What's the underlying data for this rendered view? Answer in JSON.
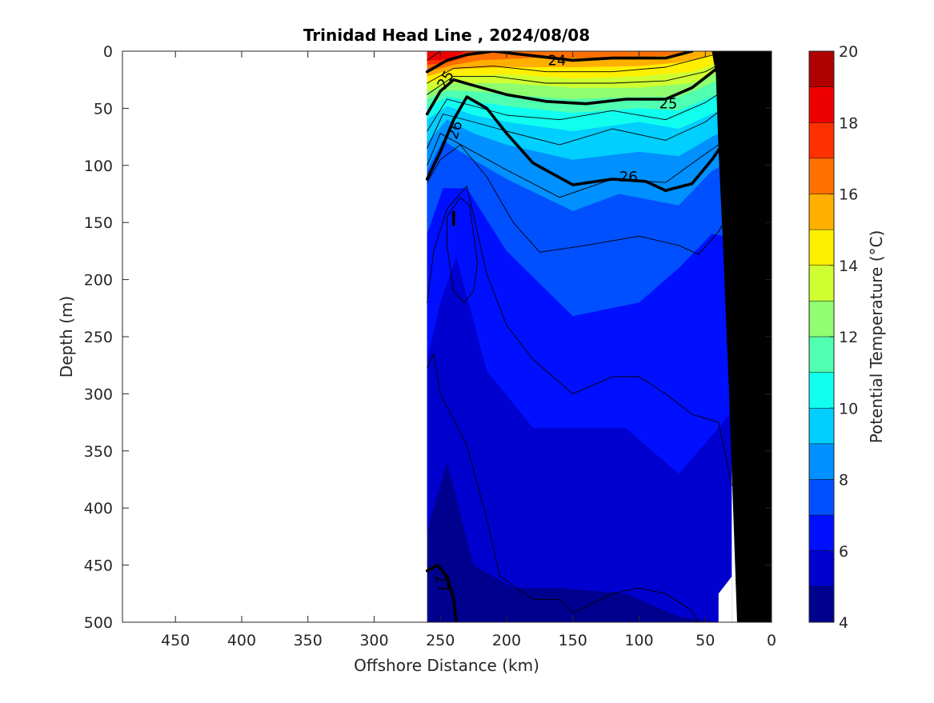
{
  "chart_data": {
    "type": "contour",
    "title": "Trinidad Head Line , 2024/08/08",
    "xlabel": "Offshore Distance (km)",
    "ylabel": "Depth (m)",
    "xlim": [
      490,
      0
    ],
    "ylim": [
      0,
      500
    ],
    "x_reversed": true,
    "y_reversed": true,
    "x_ticks": [
      450,
      400,
      350,
      300,
      250,
      200,
      150,
      100,
      50,
      0
    ],
    "y_ticks": [
      0,
      50,
      100,
      150,
      200,
      250,
      300,
      350,
      400,
      450,
      500
    ],
    "colorbar": {
      "label": "Potential Temperature (°C)",
      "range": [
        4,
        20
      ],
      "ticks": [
        4,
        6,
        8,
        10,
        12,
        14,
        16,
        18,
        20
      ],
      "levels": [
        4,
        5,
        6,
        7,
        8,
        9,
        10,
        11,
        12,
        13,
        14,
        15,
        16,
        17,
        18,
        19,
        20
      ],
      "colors": [
        "#00008f",
        "#0000cf",
        "#0010ff",
        "#0050ff",
        "#0090ff",
        "#00cfff",
        "#10ffef",
        "#50ffaf",
        "#90ff6f",
        "#cfff30",
        "#ffef00",
        "#ffaf00",
        "#ff7000",
        "#ff3000",
        "#ef0000",
        "#af0000"
      ]
    },
    "filled_layers": [
      {
        "level": 20,
        "color": "#ef0000",
        "profile": [
          [
            260,
            8
          ],
          [
            250,
            8
          ],
          [
            240,
            5
          ],
          [
            230,
            0
          ]
        ]
      },
      {
        "level": 19,
        "color": "#ff3000",
        "profile": [
          [
            260,
            12
          ],
          [
            245,
            10
          ],
          [
            230,
            5
          ],
          [
            220,
            0
          ]
        ]
      },
      {
        "level": 18,
        "color": "#ff7000",
        "profile": [
          [
            260,
            18
          ],
          [
            240,
            12
          ],
          [
            220,
            8
          ],
          [
            180,
            6
          ],
          [
            120,
            6
          ],
          [
            80,
            4
          ],
          [
            60,
            0
          ]
        ]
      },
      {
        "level": 17,
        "color": "#ffaf00",
        "profile": [
          [
            260,
            22
          ],
          [
            240,
            16
          ],
          [
            200,
            14
          ],
          [
            150,
            14
          ],
          [
            100,
            13
          ],
          [
            70,
            10
          ],
          [
            50,
            5
          ],
          [
            40,
            0
          ]
        ]
      },
      {
        "level": 16,
        "color": "#ffef00",
        "profile": [
          [
            260,
            28
          ],
          [
            240,
            22
          ],
          [
            200,
            20
          ],
          [
            150,
            24
          ],
          [
            100,
            22
          ],
          [
            60,
            18
          ],
          [
            35,
            8
          ],
          [
            20,
            0
          ]
        ]
      },
      {
        "level": 15,
        "color": "#cfff30",
        "profile": [
          [
            260,
            35
          ],
          [
            240,
            28
          ],
          [
            200,
            28
          ],
          [
            150,
            32
          ],
          [
            100,
            32
          ],
          [
            60,
            28
          ],
          [
            40,
            18
          ],
          [
            20,
            8
          ]
        ]
      },
      {
        "level": 14,
        "color": "#90ff6f",
        "profile": [
          [
            260,
            42
          ],
          [
            245,
            34
          ],
          [
            225,
            35
          ],
          [
            200,
            38
          ],
          [
            150,
            42
          ],
          [
            100,
            40
          ],
          [
            70,
            40
          ],
          [
            45,
            28
          ],
          [
            20,
            15
          ]
        ]
      },
      {
        "level": 13,
        "color": "#50ffaf",
        "profile": [
          [
            260,
            50
          ],
          [
            245,
            40
          ],
          [
            225,
            44
          ],
          [
            200,
            48
          ],
          [
            150,
            54
          ],
          [
            100,
            50
          ],
          [
            70,
            52
          ],
          [
            45,
            40
          ],
          [
            20,
            25
          ]
        ]
      },
      {
        "level": 12,
        "color": "#10ffef",
        "profile": [
          [
            260,
            60
          ],
          [
            245,
            48
          ],
          [
            225,
            56
          ],
          [
            200,
            62
          ],
          [
            150,
            70
          ],
          [
            100,
            62
          ],
          [
            70,
            68
          ],
          [
            45,
            55
          ],
          [
            20,
            40
          ]
        ]
      },
      {
        "level": 11,
        "color": "#00cfff",
        "profile": [
          [
            260,
            80
          ],
          [
            245,
            60
          ],
          [
            225,
            72
          ],
          [
            200,
            82
          ],
          [
            150,
            95
          ],
          [
            100,
            88
          ],
          [
            70,
            92
          ],
          [
            45,
            75
          ],
          [
            20,
            60
          ]
        ]
      },
      {
        "level": 10,
        "color": "#0090ff",
        "profile": [
          [
            260,
            105
          ],
          [
            248,
            78
          ],
          [
            225,
            95
          ],
          [
            200,
            112
          ],
          [
            150,
            140
          ],
          [
            115,
            125
          ],
          [
            70,
            135
          ],
          [
            45,
            105
          ],
          [
            20,
            90
          ]
        ]
      },
      {
        "level": 9,
        "color": "#0050ff",
        "profile": [
          [
            260,
            160
          ],
          [
            248,
            120
          ],
          [
            230,
            120
          ],
          [
            200,
            175
          ],
          [
            150,
            232
          ],
          [
            100,
            220
          ],
          [
            70,
            190
          ],
          [
            45,
            160
          ],
          [
            20,
            165
          ]
        ]
      },
      {
        "level": 8,
        "color": "#0010ff",
        "profile": [
          [
            260,
            270
          ],
          [
            250,
            220
          ],
          [
            238,
            180
          ],
          [
            215,
            280
          ],
          [
            180,
            330
          ],
          [
            150,
            330
          ],
          [
            110,
            330
          ],
          [
            70,
            370
          ],
          [
            40,
            330
          ],
          [
            20,
            300
          ]
        ]
      },
      {
        "level": 7,
        "color": "#0000cf",
        "profile": [
          [
            260,
            420
          ],
          [
            245,
            360
          ],
          [
            225,
            450
          ],
          [
            195,
            470
          ],
          [
            160,
            470
          ],
          [
            110,
            475
          ],
          [
            70,
            495
          ],
          [
            40,
            500
          ]
        ]
      }
    ],
    "contours": [
      {
        "label": "24",
        "bold": true,
        "points": [
          [
            260,
            18
          ],
          [
            245,
            8
          ],
          [
            230,
            3
          ],
          [
            210,
            0
          ],
          [
            180,
            4
          ],
          [
            150,
            8
          ],
          [
            120,
            6
          ],
          [
            80,
            6
          ],
          [
            60,
            0
          ]
        ]
      },
      {
        "label": "25",
        "bold": true,
        "points": [
          [
            260,
            55
          ],
          [
            250,
            35
          ],
          [
            240,
            25
          ],
          [
            225,
            30
          ],
          [
            200,
            38
          ],
          [
            170,
            44
          ],
          [
            140,
            46
          ],
          [
            110,
            42
          ],
          [
            80,
            42
          ],
          [
            60,
            32
          ],
          [
            40,
            14
          ],
          [
            20,
            0
          ]
        ]
      },
      {
        "label": "26",
        "bold": true,
        "points": [
          [
            260,
            112
          ],
          [
            250,
            88
          ],
          [
            240,
            60
          ],
          [
            230,
            40
          ],
          [
            215,
            50
          ],
          [
            200,
            72
          ],
          [
            180,
            98
          ],
          [
            150,
            117
          ],
          [
            120,
            112
          ],
          [
            95,
            114
          ],
          [
            80,
            122
          ],
          [
            60,
            116
          ],
          [
            45,
            95
          ],
          [
            30,
            70
          ],
          [
            20,
            55
          ]
        ]
      },
      {
        "label": "27",
        "bold": true,
        "points": [
          [
            260,
            455
          ],
          [
            252,
            450
          ],
          [
            245,
            460
          ],
          [
            240,
            480
          ],
          [
            238,
            500
          ]
        ]
      },
      {
        "label": "",
        "bold": true,
        "points": [
          [
            240,
            141
          ],
          [
            240,
            152
          ]
        ]
      },
      {
        "label": "",
        "bold": false,
        "points": [
          [
            260,
            8
          ],
          [
            250,
            0
          ]
        ]
      },
      {
        "label": "",
        "bold": false,
        "points": [
          [
            260,
            28
          ],
          [
            240,
            15
          ],
          [
            210,
            13
          ],
          [
            170,
            18
          ],
          [
            120,
            18
          ],
          [
            80,
            14
          ],
          [
            60,
            8
          ],
          [
            40,
            2
          ]
        ]
      },
      {
        "label": "",
        "bold": false,
        "points": [
          [
            260,
            38
          ],
          [
            240,
            22
          ],
          [
            210,
            22
          ],
          [
            170,
            28
          ],
          [
            120,
            28
          ],
          [
            80,
            26
          ],
          [
            50,
            18
          ],
          [
            30,
            6
          ]
        ]
      },
      {
        "label": "",
        "bold": false,
        "points": [
          [
            260,
            70
          ],
          [
            245,
            42
          ],
          [
            225,
            48
          ],
          [
            200,
            56
          ],
          [
            160,
            60
          ],
          [
            120,
            52
          ],
          [
            80,
            60
          ],
          [
            50,
            45
          ],
          [
            25,
            26
          ]
        ]
      },
      {
        "label": "",
        "bold": false,
        "points": [
          [
            260,
            85
          ],
          [
            248,
            55
          ],
          [
            225,
            62
          ],
          [
            200,
            70
          ],
          [
            160,
            82
          ],
          [
            120,
            68
          ],
          [
            80,
            78
          ],
          [
            50,
            62
          ],
          [
            25,
            40
          ]
        ]
      },
      {
        "label": "",
        "bold": false,
        "points": [
          [
            260,
            100
          ],
          [
            250,
            72
          ],
          [
            225,
            88
          ],
          [
            200,
            104
          ],
          [
            160,
            128
          ],
          [
            120,
            112
          ],
          [
            80,
            115
          ],
          [
            50,
            90
          ],
          [
            25,
            70
          ]
        ]
      },
      {
        "label": "",
        "bold": false,
        "points": [
          [
            260,
            115
          ],
          [
            250,
            95
          ],
          [
            235,
            82
          ],
          [
            215,
            110
          ],
          [
            195,
            150
          ],
          [
            175,
            176
          ],
          [
            140,
            170
          ],
          [
            100,
            162
          ],
          [
            70,
            170
          ],
          [
            55,
            178
          ],
          [
            40,
            158
          ],
          [
            30,
            138
          ],
          [
            20,
            150
          ]
        ]
      },
      {
        "label": "",
        "bold": false,
        "points": [
          [
            260,
            220
          ],
          [
            255,
            175
          ],
          [
            245,
            138
          ],
          [
            230,
            118
          ],
          [
            215,
            195
          ],
          [
            200,
            240
          ],
          [
            180,
            270
          ],
          [
            150,
            300
          ],
          [
            120,
            285
          ],
          [
            100,
            285
          ],
          [
            80,
            300
          ],
          [
            60,
            318
          ],
          [
            40,
            325
          ],
          [
            30,
            380
          ]
        ]
      },
      {
        "label": "",
        "bold": false,
        "points": [
          [
            260,
            277
          ],
          [
            255,
            265
          ],
          [
            250,
            300
          ],
          [
            230,
            345
          ],
          [
            215,
            410
          ],
          [
            205,
            460
          ],
          [
            180,
            480
          ],
          [
            160,
            480
          ],
          [
            150,
            492
          ],
          [
            120,
            475
          ],
          [
            100,
            470
          ],
          [
            80,
            475
          ],
          [
            60,
            490
          ],
          [
            55,
            500
          ]
        ]
      },
      {
        "label": "",
        "bold": false,
        "points": [
          [
            240,
            210
          ],
          [
            245,
            170
          ],
          [
            245,
            145
          ],
          [
            235,
            128
          ],
          [
            228,
            135
          ],
          [
            222,
            185
          ],
          [
            225,
            210
          ],
          [
            232,
            220
          ],
          [
            240,
            210
          ]
        ]
      }
    ],
    "contour_labels": [
      {
        "text": "24",
        "x": 162,
        "y": 8,
        "angle": 0
      },
      {
        "text": "25",
        "x": 78,
        "y": 46,
        "angle": 0
      },
      {
        "text": "26",
        "x": 108,
        "y": 110,
        "angle": 0
      },
      {
        "text": "25",
        "x": 246,
        "y": 25,
        "angle": -60
      },
      {
        "text": "26",
        "x": 239,
        "y": 69,
        "angle": -72
      },
      {
        "text": "27",
        "x": 249,
        "y": 466,
        "angle": 75
      }
    ],
    "data_region": {
      "left_edge_km": 260,
      "coast_outline": [
        [
          30,
          500
        ],
        [
          30,
          193
        ],
        [
          22,
          190
        ],
        [
          22,
          1
        ],
        [
          0,
          1
        ],
        [
          0,
          500
        ]
      ],
      "shelf_gap_bottom": [
        [
          40,
          500
        ],
        [
          40,
          475
        ],
        [
          30,
          460
        ],
        [
          30,
          500
        ]
      ],
      "seafloor": [
        [
          26,
          500
        ],
        [
          32,
          300
        ],
        [
          37,
          160
        ],
        [
          40,
          88
        ],
        [
          42,
          20
        ],
        [
          45,
          0
        ],
        [
          0,
          0
        ],
        [
          0,
          500
        ]
      ]
    }
  }
}
